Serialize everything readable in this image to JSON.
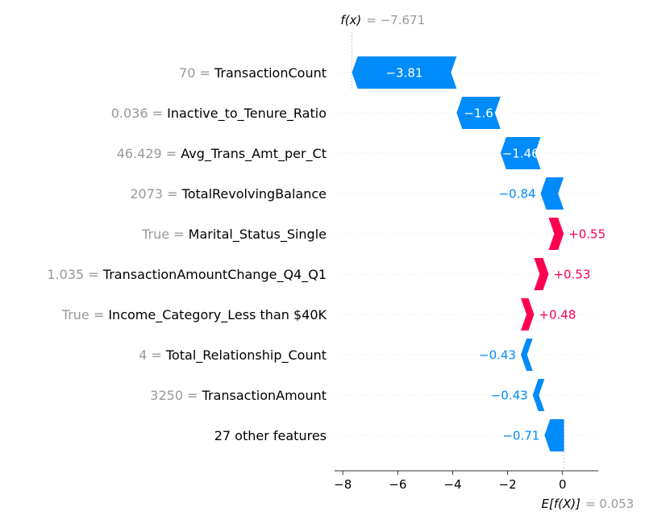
{
  "chart_data": {
    "type": "waterfall",
    "fx_label": "f(x)",
    "fx_value": "= −7.671",
    "efx_label": "E[f(X)]",
    "efx_value": "= 0.053",
    "base_value": 0.053,
    "final_value": -7.671,
    "xlim": [
      -8.3,
      1.3
    ],
    "xticks": [
      {
        "value": -8,
        "label": "−8"
      },
      {
        "value": -6,
        "label": "−6"
      },
      {
        "value": -4,
        "label": "−4"
      },
      {
        "value": -2,
        "label": "−2"
      },
      {
        "value": 0,
        "label": "0"
      }
    ],
    "features": [
      {
        "value_text": "70",
        "name": "TransactionCount",
        "contribution": -3.81,
        "label": "−3.81",
        "label_inside": true
      },
      {
        "value_text": "0.036",
        "name": "Inactive_to_Tenure_Ratio",
        "contribution": -1.6,
        "label": "−1.6",
        "label_inside": true
      },
      {
        "value_text": "46.429",
        "name": "Avg_Trans_Amt_per_Ct",
        "contribution": -1.46,
        "label": "−1.46",
        "label_inside": true
      },
      {
        "value_text": "2073",
        "name": "TotalRevolvingBalance",
        "contribution": -0.84,
        "label": "−0.84",
        "label_inside": false
      },
      {
        "value_text": "True",
        "name": "Marital_Status_Single",
        "contribution": 0.55,
        "label": "+0.55",
        "label_inside": false
      },
      {
        "value_text": "1.035",
        "name": "TransactionAmountChange_Q4_Q1",
        "contribution": 0.53,
        "label": "+0.53",
        "label_inside": false
      },
      {
        "value_text": "True",
        "name": "Income_Category_Less than $40K",
        "contribution": 0.48,
        "label": "+0.48",
        "label_inside": false
      },
      {
        "value_text": "4",
        "name": "Total_Relationship_Count",
        "contribution": -0.43,
        "label": "−0.43",
        "label_inside": false
      },
      {
        "value_text": "3250",
        "name": "TransactionAmount",
        "contribution": -0.43,
        "label": "−0.43",
        "label_inside": false
      },
      {
        "value_text": "",
        "name": "27 other features",
        "contribution": -0.71,
        "label": "−0.71",
        "label_inside": false
      }
    ],
    "colors": {
      "negative": "#008bfb",
      "positive": "#ff0051",
      "gray_text": "#999999"
    }
  }
}
